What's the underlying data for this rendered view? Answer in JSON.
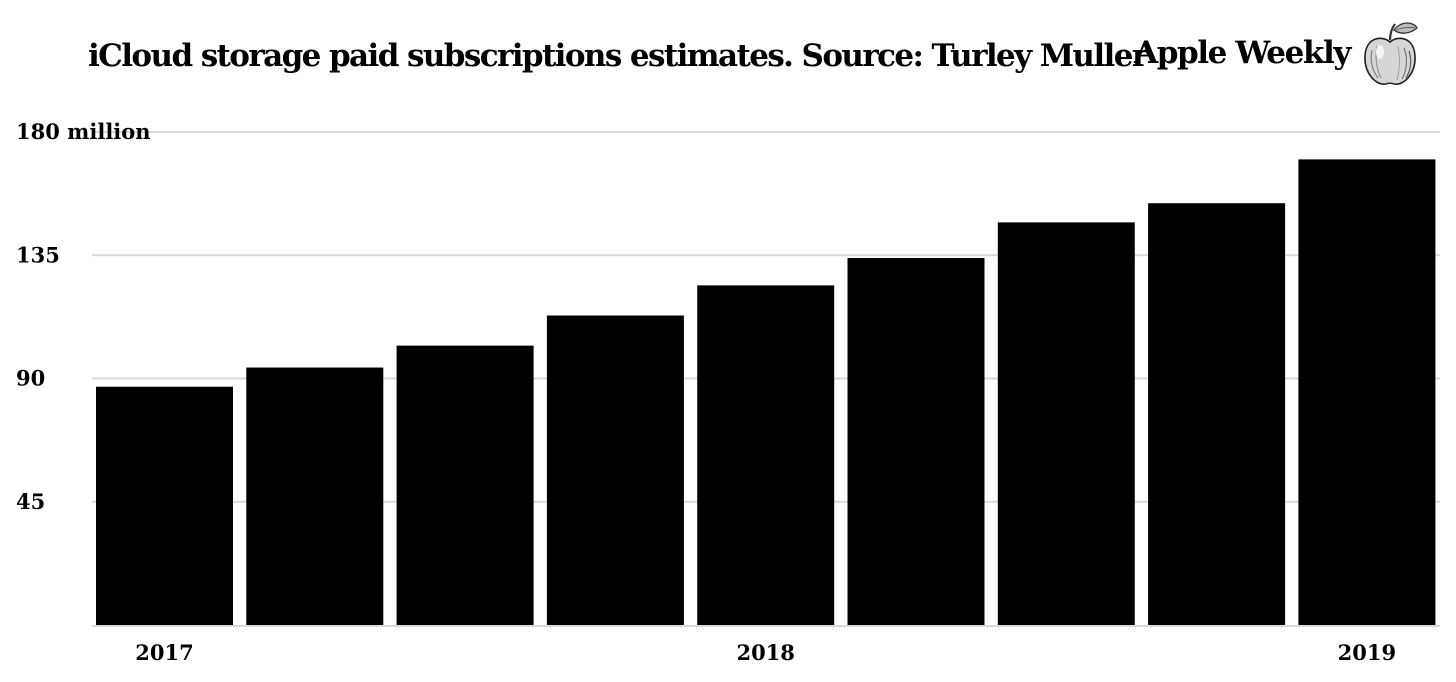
{
  "header": {
    "title": "iCloud storage paid subscriptions estimates. Source: Turley Muller",
    "brand_name": "Apple Weekly",
    "brand_logo_icon": "apple-sketch-icon"
  },
  "colors": {
    "bar": "#000000",
    "grid": "#d9d9d9",
    "background": "#ffffff",
    "text": "#000000"
  },
  "chart_data": {
    "type": "bar",
    "title": "iCloud storage paid subscriptions estimates. Source: Turley Muller",
    "ylabel": "",
    "y_unit": "million",
    "ylim": [
      0,
      180
    ],
    "yticks": [
      45,
      90,
      135,
      180
    ],
    "grid": true,
    "legend": "none",
    "x_tick_labels": [
      "2017",
      "2018",
      "2019"
    ],
    "x_tick_positions": [
      0,
      4,
      8
    ],
    "values": [
      87,
      94,
      102,
      113,
      124,
      134,
      147,
      154,
      170
    ]
  }
}
